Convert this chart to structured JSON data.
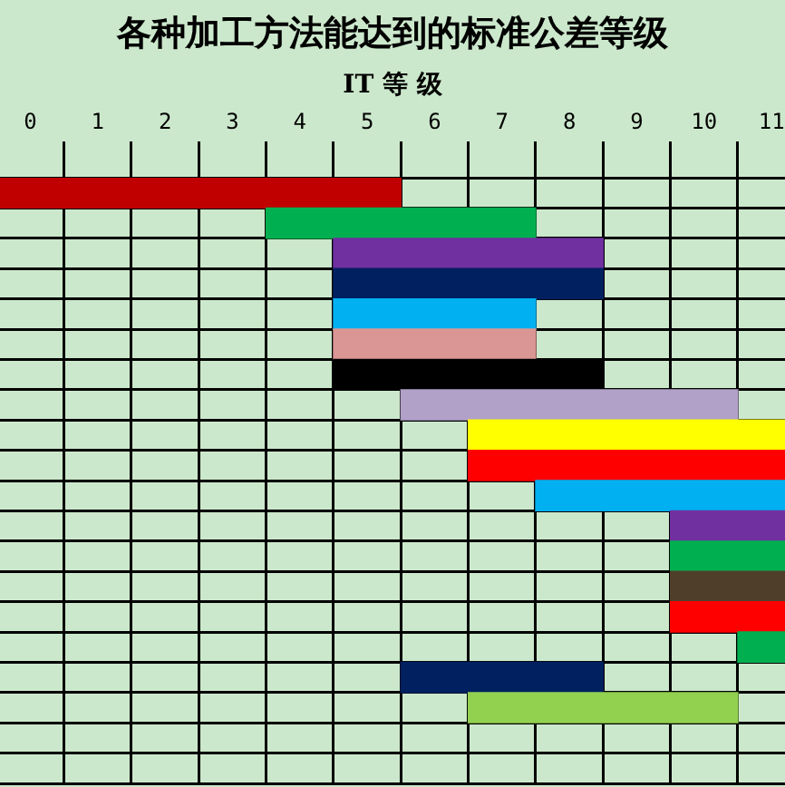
{
  "chart_data": {
    "type": "bar",
    "orientation": "horizontal",
    "title": "各种加工方法能达到的标准公差等级",
    "xlabel": "IT 等 级",
    "categories": [
      null,
      null,
      null,
      null,
      null,
      null,
      null,
      null,
      null,
      null,
      null,
      null,
      null,
      null,
      null,
      null,
      null,
      null,
      null,
      null
    ],
    "base": [
      -0.45,
      3.5,
      4.5,
      4.5,
      4.5,
      4.5,
      4.5,
      5.5,
      6.5,
      6.5,
      7.5,
      9.5,
      9.5,
      9.5,
      9.5,
      10.5,
      5.5,
      6.5,
      null,
      null
    ],
    "values": [
      5.95,
      4,
      4,
      4,
      3,
      3,
      4,
      5,
      4.7,
      4.7,
      3.7,
      1.7,
      1.7,
      1.7,
      1.7,
      0.7,
      3,
      4,
      null,
      null
    ],
    "colors": [
      "#c00000",
      "#00b050",
      "#7030a0",
      "#002060",
      "#00b0f0",
      "#da9694",
      "#000000",
      "#b1a0c7",
      "#ffff00",
      "#ff0000",
      "#00b0f0",
      "#7030a0",
      "#00b050",
      "#4f3f2a",
      "#ff0000",
      "#00b050",
      "#002060",
      "#92d050",
      "#cce8cc",
      "#cce8cc"
    ],
    "xlim": [
      -0.45,
      11.2
    ],
    "xticks": [
      0,
      1,
      2,
      3,
      4,
      5,
      6,
      7,
      8,
      9,
      10,
      11,
      {
        "value": 0.5,
        "label": null
      },
      {
        "value": 1.5,
        "label": null
      },
      {
        "value": 2.5,
        "label": null
      },
      {
        "value": 3.5,
        "label": null
      },
      {
        "value": 4.5,
        "label": null
      },
      {
        "value": 5.5,
        "label": null
      },
      {
        "value": 6.5,
        "label": null
      },
      {
        "value": 7.5,
        "label": null
      },
      {
        "value": 8.5,
        "label": null
      },
      {
        "value": 9.5,
        "label": null
      },
      {
        "value": 10.5,
        "label": null
      }
    ],
    "grid": true
  }
}
